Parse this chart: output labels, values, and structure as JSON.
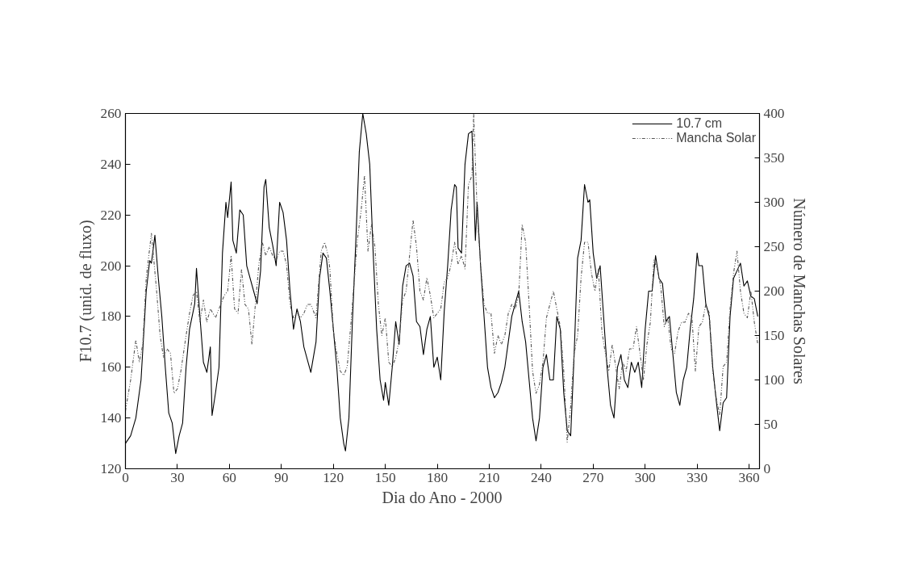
{
  "chart_data": {
    "type": "line",
    "xlabel": "Dia do Ano - 2000",
    "ylabel": "F10.7 (unid. de fluxo)",
    "y2label": "Número de Manchas Solares",
    "xlim": [
      0,
      366
    ],
    "ylim": [
      120,
      260
    ],
    "y2lim": [
      0,
      400
    ],
    "xticks": [
      0,
      30,
      60,
      90,
      120,
      150,
      180,
      210,
      240,
      270,
      300,
      330,
      360
    ],
    "yticks": [
      120,
      140,
      160,
      180,
      200,
      220,
      240,
      260
    ],
    "y2ticks": [
      0,
      50,
      100,
      150,
      200,
      250,
      300,
      350,
      400
    ],
    "legend": "top right",
    "series": [
      {
        "name": "10.7 cm",
        "color": "#000000",
        "line_style": "solid",
        "x": [
          0,
          3,
          6,
          9,
          12,
          14,
          15,
          17,
          19,
          21,
          23,
          25,
          27,
          29,
          31,
          33,
          35,
          37,
          40,
          41,
          43,
          45,
          47,
          49,
          50,
          52,
          54,
          56,
          58,
          59,
          61,
          62,
          64,
          66,
          68,
          70,
          72,
          74,
          76,
          78,
          80,
          81,
          83,
          85,
          87,
          89,
          91,
          93,
          95,
          97,
          99,
          101,
          103,
          105,
          107,
          110,
          112,
          114,
          116,
          118,
          120,
          122,
          124,
          126,
          127,
          129,
          131,
          133,
          135,
          137,
          139,
          141,
          143,
          145,
          147,
          149,
          150,
          152,
          154,
          156,
          158,
          160,
          162,
          164,
          166,
          168,
          170,
          172,
          174,
          176,
          178,
          180,
          182,
          184,
          186,
          188,
          190,
          191,
          192,
          194,
          196,
          198,
          200,
          202,
          203,
          205,
          207,
          209,
          211,
          213,
          215,
          217,
          219,
          221,
          223,
          225,
          227,
          229,
          231,
          233,
          235,
          237,
          239,
          241,
          243,
          245,
          247,
          249,
          251,
          253,
          255,
          257,
          259,
          261,
          263,
          265,
          267,
          268,
          270,
          272,
          274,
          276,
          278,
          280,
          282,
          284,
          286,
          288,
          290,
          292,
          294,
          296,
          298,
          300,
          302,
          304,
          306,
          308,
          310,
          312,
          314,
          316,
          318,
          320,
          322,
          324,
          326,
          328,
          330,
          331,
          333,
          335,
          337,
          339,
          341,
          343,
          345,
          347,
          349,
          351,
          353,
          355,
          357,
          359,
          361,
          363,
          365
        ],
        "values": [
          130,
          133,
          140,
          155,
          190,
          202,
          201,
          212,
          195,
          180,
          160,
          142,
          138,
          126,
          133,
          138,
          160,
          175,
          185,
          199,
          180,
          162,
          158,
          168,
          141,
          150,
          160,
          205,
          225,
          219,
          233,
          210,
          205,
          222,
          220,
          200,
          195,
          190,
          185,
          198,
          231,
          234,
          215,
          208,
          200,
          225,
          221,
          210,
          190,
          175,
          183,
          178,
          168,
          163,
          158,
          170,
          195,
          205,
          203,
          190,
          175,
          160,
          140,
          130,
          127,
          140,
          178,
          210,
          245,
          260,
          252,
          240,
          205,
          175,
          155,
          147,
          154,
          145,
          160,
          178,
          169,
          192,
          200,
          201,
          196,
          178,
          176,
          165,
          175,
          180,
          160,
          164,
          155,
          182,
          200,
          222,
          232,
          231,
          207,
          205,
          240,
          252,
          253,
          210,
          225,
          200,
          180,
          160,
          152,
          148,
          150,
          154,
          160,
          170,
          180,
          185,
          190,
          178,
          170,
          155,
          140,
          131,
          140,
          160,
          165,
          155,
          155,
          180,
          175,
          150,
          135,
          133,
          165,
          203,
          210,
          232,
          225,
          226,
          205,
          195,
          200,
          180,
          160,
          145,
          140,
          160,
          165,
          155,
          152,
          162,
          158,
          162,
          152,
          175,
          190,
          190,
          204,
          195,
          193,
          178,
          180,
          165,
          150,
          145,
          155,
          160,
          175,
          187,
          205,
          200,
          200,
          185,
          180,
          160,
          147,
          135,
          146,
          148,
          180,
          195,
          198,
          201,
          192,
          194,
          188,
          187,
          180
        ]
      },
      {
        "name": "Mancha Solar",
        "color": "#555555",
        "line_style": "dashed",
        "axis": "y2",
        "x": [
          0,
          3,
          6,
          8,
          10,
          12,
          15,
          18,
          20,
          22,
          24,
          26,
          28,
          30,
          32,
          35,
          37,
          39,
          41,
          43,
          45,
          47,
          49,
          52,
          55,
          57,
          59,
          61,
          63,
          65,
          67,
          69,
          71,
          73,
          75,
          77,
          79,
          81,
          83,
          85,
          87,
          89,
          91,
          93,
          95,
          97,
          99,
          101,
          103,
          105,
          107,
          110,
          113,
          115,
          117,
          118,
          120,
          122,
          124,
          126,
          128,
          130,
          132,
          134,
          136,
          138,
          140,
          142,
          144,
          146,
          148,
          150,
          152,
          154,
          156,
          158,
          160,
          162,
          164,
          166,
          168,
          170,
          172,
          174,
          176,
          178,
          180,
          182,
          184,
          186,
          188,
          190,
          192,
          194,
          196,
          198,
          200,
          201,
          203,
          205,
          207,
          209,
          211,
          213,
          215,
          217,
          219,
          221,
          223,
          225,
          227,
          229,
          231,
          233,
          235,
          237,
          239,
          241,
          243,
          245,
          247,
          249,
          251,
          253,
          255,
          257,
          259,
          261,
          263,
          265,
          267,
          269,
          271,
          273,
          275,
          277,
          279,
          281,
          283,
          285,
          287,
          289,
          291,
          293,
          295,
          297,
          299,
          301,
          303,
          305,
          307,
          309,
          311,
          313,
          315,
          317,
          319,
          321,
          323,
          325,
          327,
          329,
          331,
          333,
          335,
          337,
          339,
          341,
          343,
          345,
          347,
          349,
          351,
          353,
          355,
          357,
          359,
          361,
          363,
          365
        ],
        "values": [
          65,
          100,
          145,
          120,
          140,
          215,
          265,
          200,
          150,
          125,
          135,
          130,
          85,
          90,
          110,
          150,
          175,
          195,
          200,
          165,
          190,
          165,
          180,
          170,
          185,
          195,
          200,
          240,
          180,
          175,
          225,
          185,
          180,
          140,
          185,
          230,
          255,
          240,
          250,
          240,
          235,
          245,
          245,
          230,
          185,
          170,
          175,
          170,
          175,
          185,
          185,
          170,
          245,
          255,
          240,
          225,
          155,
          130,
          110,
          105,
          115,
          160,
          210,
          260,
          290,
          330,
          245,
          275,
          250,
          185,
          150,
          170,
          120,
          115,
          125,
          145,
          190,
          200,
          240,
          280,
          250,
          200,
          190,
          215,
          195,
          170,
          175,
          180,
          210,
          215,
          230,
          255,
          230,
          240,
          225,
          320,
          330,
          400,
          290,
          230,
          185,
          175,
          175,
          130,
          150,
          140,
          150,
          175,
          185,
          180,
          195,
          275,
          255,
          185,
          110,
          85,
          95,
          120,
          170,
          185,
          200,
          180,
          160,
          110,
          30,
          70,
          130,
          150,
          215,
          255,
          255,
          220,
          200,
          225,
          155,
          130,
          110,
          140,
          115,
          90,
          120,
          110,
          135,
          135,
          160,
          130,
          100,
          140,
          165,
          235,
          225,
          205,
          160,
          170,
          135,
          130,
          155,
          165,
          165,
          175,
          170,
          110,
          160,
          165,
          185,
          175,
          110,
          80,
          60,
          115,
          120,
          180,
          220,
          245,
          200,
          175,
          170,
          200,
          165,
          140
        ]
      }
    ]
  }
}
